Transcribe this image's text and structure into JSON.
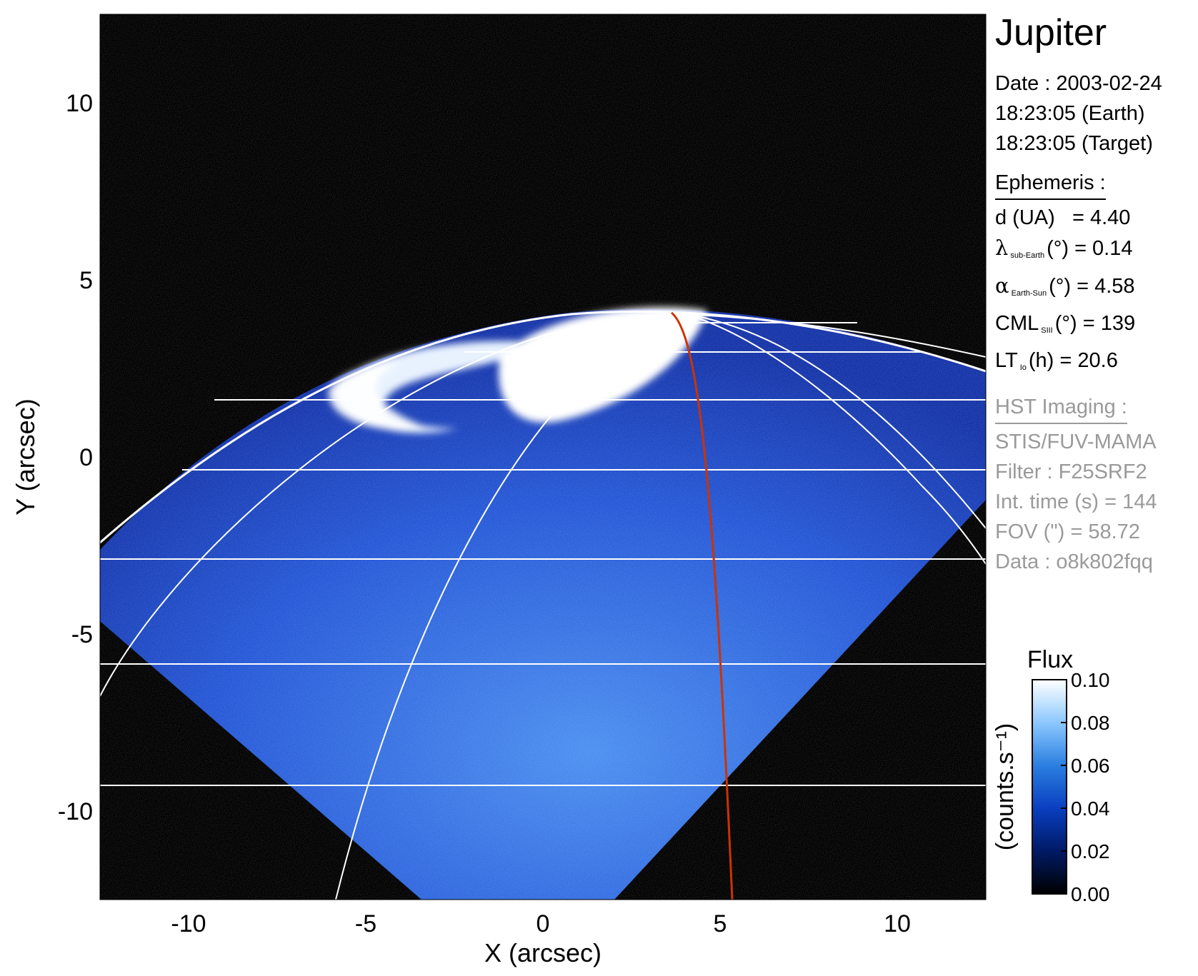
{
  "target": "Jupiter",
  "observation": {
    "date_line": "Date : 2003-02-24",
    "earth_time_line": "18:23:05 (Earth)",
    "target_time_line": "18:23:05 (Target)"
  },
  "ephemeris": {
    "heading": "Ephemeris :",
    "d_label": "d (UA)",
    "d_value": "= 4.40",
    "lambda_symbol": "λ",
    "lambda_sub": "sub-Earth",
    "lambda_value": "(°) = 0.14",
    "alpha_symbol": "α",
    "alpha_sub": "Earth-Sun",
    "alpha_value": "(°) = 4.58",
    "cml_symbol": "CML",
    "cml_sub": "SIII",
    "cml_value": "(°) = 139",
    "lt_symbol": "LT",
    "lt_sub": "Io",
    "lt_value": "(h) = 20.6"
  },
  "hst": {
    "heading": "HST Imaging :",
    "instrument": "STIS/FUV-MAMA",
    "filter": "Filter : F25SRF2",
    "int_time": "Int. time (s) = 144",
    "fov": "FOV (\") = 58.72",
    "data_id": "Data : o8k802fqq"
  },
  "axes": {
    "xlabel": "X (arcsec)",
    "ylabel": "Y (arcsec)",
    "xlim": [
      -12.5,
      12.5
    ],
    "ylim": [
      -12.5,
      12.5
    ],
    "xticks": [
      -10,
      -5,
      0,
      5,
      10
    ],
    "yticks": [
      -10,
      -5,
      0,
      5,
      10
    ],
    "xtick_labels": [
      "-10",
      "-5",
      "0",
      "5",
      "10"
    ],
    "ytick_labels": [
      "-10",
      "-5",
      "0",
      "5",
      "10"
    ]
  },
  "colorbar": {
    "title": "Flux",
    "units": "(counts.s⁻¹)",
    "range": [
      0.0,
      0.1
    ],
    "ticks": [
      "0.00",
      "0.02",
      "0.04",
      "0.06",
      "0.08",
      "0.10"
    ],
    "colors": [
      "#000000",
      "#001a66",
      "#0a3fc0",
      "#2a7fe0",
      "#8cc8ff",
      "#ffffff"
    ]
  },
  "image": {
    "background_color": "#000000",
    "disk_color": "#1840c8",
    "aurora_color": "#ffffff",
    "grid_color": "#ffffff",
    "io_footprint_color": "#cc3300"
  }
}
